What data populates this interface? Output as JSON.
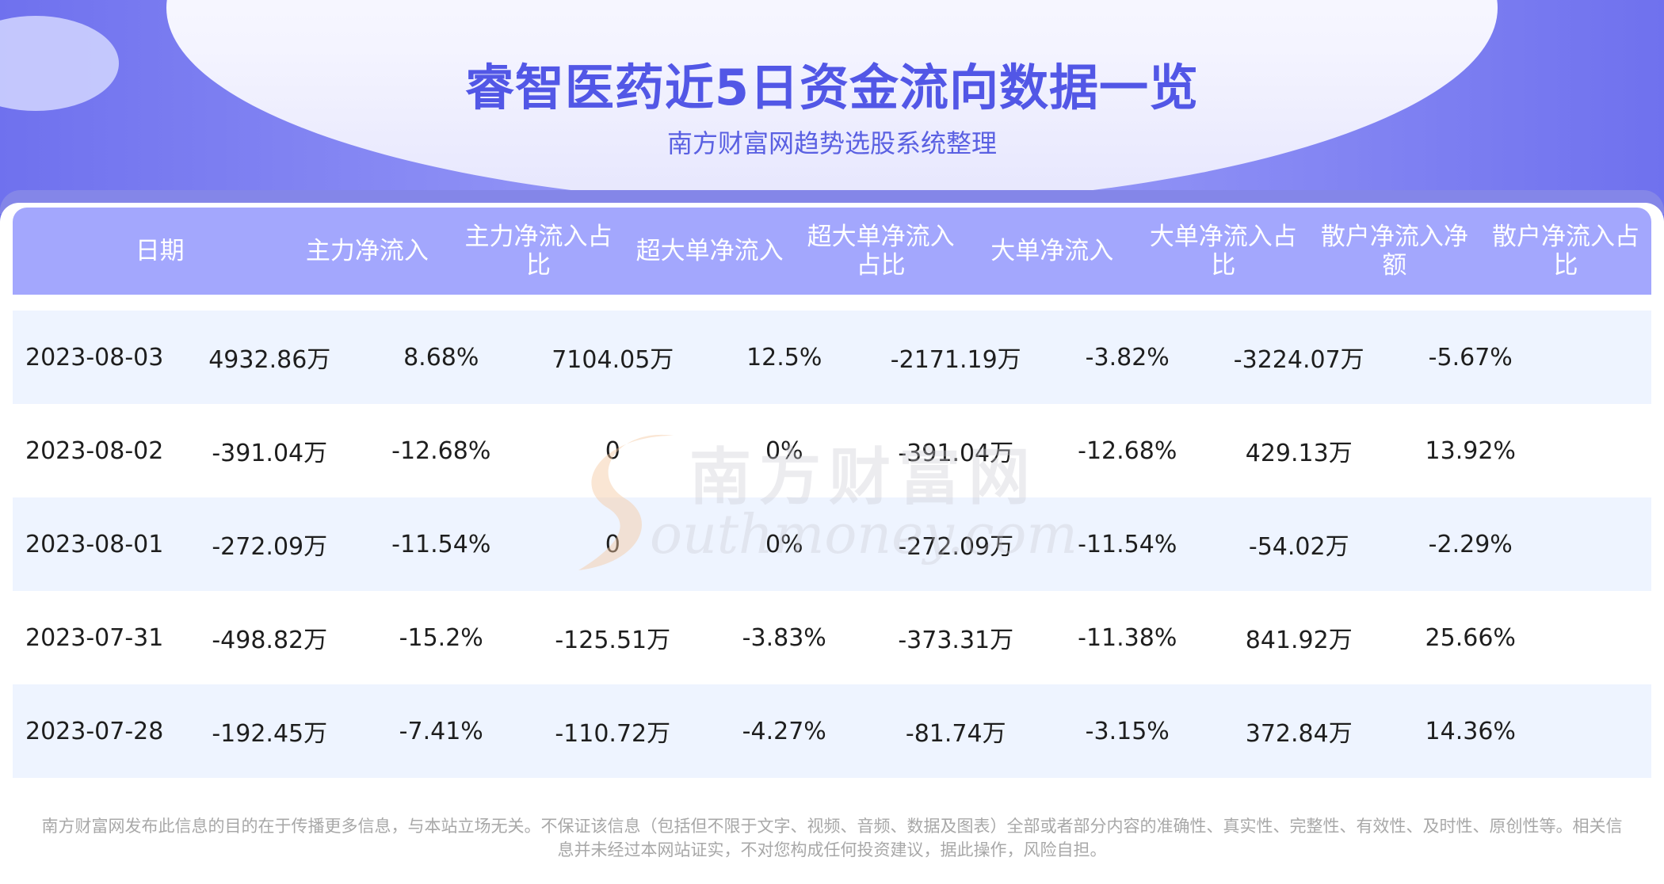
{
  "header": {
    "title": "睿智医药近5日资金流向数据一览",
    "subtitle": "南方财富网趋势选股系统整理"
  },
  "table": {
    "columns": [
      "日期",
      "主力净流入",
      "主力净流入占比",
      "超大单净流入",
      "超大单净流入占比",
      "大单净流入",
      "大单净流入占比",
      "散户净流入净额",
      "散户净流入占比"
    ],
    "rows": [
      [
        "2023-08-03",
        "4932.86万",
        "8.68%",
        "7104.05万",
        "12.5%",
        "-2171.19万",
        "-3.82%",
        "-3224.07万",
        "-5.67%"
      ],
      [
        "2023-08-02",
        "-391.04万",
        "-12.68%",
        "0",
        "0%",
        "-391.04万",
        "-12.68%",
        "429.13万",
        "13.92%"
      ],
      [
        "2023-08-01",
        "-272.09万",
        "-11.54%",
        "0",
        "0%",
        "-272.09万",
        "-11.54%",
        "-54.02万",
        "-2.29%"
      ],
      [
        "2023-07-31",
        "-498.82万",
        "-15.2%",
        "-125.51万",
        "-3.83%",
        "-373.31万",
        "-11.38%",
        "841.92万",
        "25.66%"
      ],
      [
        "2023-07-28",
        "-192.45万",
        "-7.41%",
        "-110.72万",
        "-4.27%",
        "-81.74万",
        "-3.15%",
        "372.84万",
        "14.36%"
      ]
    ]
  },
  "watermark": {
    "cn": "南方财富网",
    "en": "outhmoney.com"
  },
  "footer": {
    "line1": "南方财富网发布此信息的目的在于传播更多信息，与本站立场无关。不保证该信息（包括但不限于文字、视频、音频、数据及图表）全部或者部分内容的准确性、真实性、完整性、有效性、及时性、原创性等。相关信",
    "line2": "息并未经过本网站证实，不对您构成任何投资建议，据此操作，风险自担。"
  }
}
